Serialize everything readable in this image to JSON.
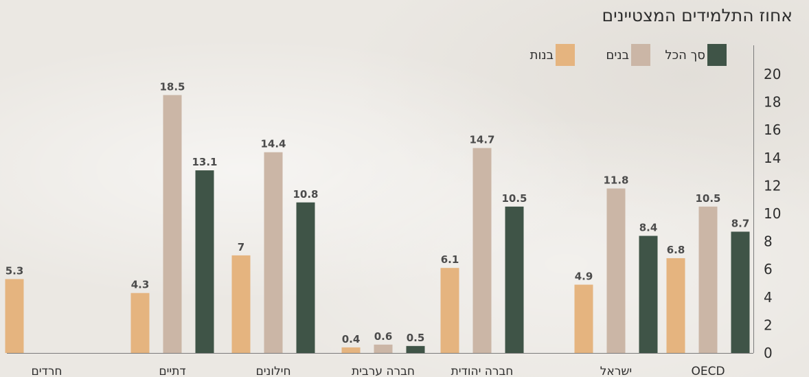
{
  "chart_data": {
    "type": "bar",
    "title": "אחוז התלמידים המצטיינים",
    "categories": [
      "OECD",
      "ישראל",
      "חברה יהודית",
      "חברה ערבית",
      "חילונים",
      "דתיים",
      "חרדים"
    ],
    "series": [
      {
        "name": "סך הכל",
        "color": "#3f5447",
        "values": [
          8.7,
          8.4,
          10.5,
          0.5,
          10.8,
          13.1,
          null
        ]
      },
      {
        "name": "בנים",
        "color": "#cbb6a6",
        "values": [
          10.5,
          11.8,
          14.7,
          0.6,
          14.4,
          18.5,
          null
        ]
      },
      {
        "name": "בנות",
        "color": "#e5b47f",
        "values": [
          6.8,
          4.9,
          6.1,
          0.4,
          7,
          4.3,
          5.3
        ]
      }
    ],
    "value_labels": [
      [
        "8.7",
        "8.4",
        "10.5",
        "0.5",
        "10.8",
        "13.1",
        ""
      ],
      [
        "10.5",
        "11.8",
        "14.7",
        "0.6",
        "14.4",
        "18.5",
        ""
      ],
      [
        "6.8",
        "4.9",
        "6.1",
        "0.4",
        "7",
        "4.3",
        "5.3"
      ]
    ],
    "y_ticks": [
      "0",
      "2",
      "4",
      "6",
      "8",
      "10",
      "12",
      "14",
      "16",
      "18",
      "20"
    ],
    "ylim": [
      0,
      20
    ],
    "axis_position": "right",
    "legend_position": "top-right",
    "grid": false,
    "xlabel": "",
    "ylabel": ""
  }
}
